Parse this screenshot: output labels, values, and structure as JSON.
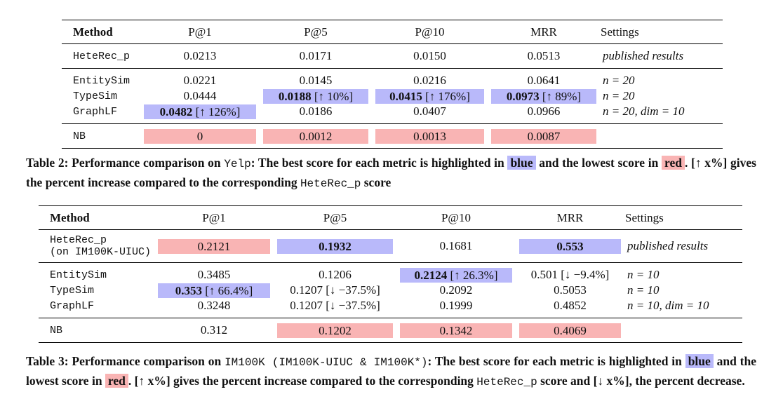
{
  "tables": [
    {
      "columns": [
        "Method",
        "P@1",
        "P@5",
        "P@10",
        "MRR",
        "Settings"
      ],
      "widths": [
        112,
        170,
        160,
        165,
        160,
        175
      ],
      "groups": [
        [
          {
            "method": "HeteRec_p",
            "cells": [
              {
                "value": "0.0213"
              },
              {
                "value": "0.0171"
              },
              {
                "value": "0.0150"
              },
              {
                "value": "0.0513"
              }
            ],
            "settings": "published results"
          }
        ],
        [
          {
            "method": "EntitySim",
            "cells": [
              {
                "value": "0.0221"
              },
              {
                "value": "0.0145"
              },
              {
                "value": "0.0216"
              },
              {
                "value": "0.0641"
              }
            ],
            "settings": "n = 20"
          },
          {
            "method": "TypeSim",
            "cells": [
              {
                "value": "0.0444"
              },
              {
                "value": "0.0188",
                "note": "[↑ 10%]",
                "bold": true,
                "highlight": "blue"
              },
              {
                "value": "0.0415",
                "note": "[↑ 176%]",
                "bold": true,
                "highlight": "blue"
              },
              {
                "value": "0.0973",
                "note": "[↑ 89%]",
                "bold": true,
                "highlight": "blue"
              }
            ],
            "settings": "n = 20"
          },
          {
            "method": "GraphLF",
            "cells": [
              {
                "value": "0.0482",
                "note": "[↑ 126%]",
                "bold": true,
                "highlight": "blue"
              },
              {
                "value": "0.0186"
              },
              {
                "value": "0.0407"
              },
              {
                "value": "0.0966"
              }
            ],
            "settings": "n = 20, dim = 10"
          }
        ],
        [
          {
            "method": "NB",
            "cells": [
              {
                "value": "0",
                "highlight": "red"
              },
              {
                "value": "0.0012",
                "highlight": "red"
              },
              {
                "value": "0.0013",
                "highlight": "red"
              },
              {
                "value": "0.0087",
                "highlight": "red"
              }
            ]
          }
        ]
      ],
      "caption": [
        {
          "text": "Table 2: Performance comparison on ",
          "style": "bold"
        },
        {
          "text": "Yelp",
          "style": "mono"
        },
        {
          "text": ": The best score for each metric is highlighted in ",
          "style": "bold"
        },
        {
          "text": "blue",
          "style": "blue"
        },
        {
          "text": " and the lowest score in ",
          "style": "bold"
        },
        {
          "text": "red",
          "style": "red"
        },
        {
          "text": ". [↑ x%] gives the percent increase compared to the corresponding ",
          "style": "bold"
        },
        {
          "text": "HeteRec_p",
          "style": "mono"
        },
        {
          "text": " score",
          "style": "bold"
        }
      ]
    },
    {
      "columns": [
        "Method",
        "P@1",
        "P@5",
        "P@10",
        "MRR",
        "Settings"
      ],
      "widths": [
        165,
        170,
        175,
        170,
        155,
        168
      ],
      "groups": [
        [
          {
            "method": "HeteRec_p",
            "method_note": "(on IM100K-UIUC)",
            "cells": [
              {
                "value": "0.2121",
                "highlight": "red"
              },
              {
                "value": "0.1932",
                "bold": true,
                "highlight": "blue"
              },
              {
                "value": "0.1681"
              },
              {
                "value": "0.553",
                "bold": true,
                "highlight": "blue"
              }
            ],
            "settings": "published results"
          }
        ],
        [
          {
            "method": "EntitySim",
            "cells": [
              {
                "value": "0.3485"
              },
              {
                "value": "0.1206"
              },
              {
                "value": "0.2124",
                "note": "[↑ 26.3%]",
                "bold": true,
                "highlight": "blue"
              },
              {
                "value": "0.501",
                "note": "[↓ −9.4%]"
              }
            ],
            "settings": "n = 10"
          },
          {
            "method": "TypeSim",
            "cells": [
              {
                "value": "0.353",
                "note": "[↑ 66.4%]",
                "bold": true,
                "highlight": "blue"
              },
              {
                "value": "0.1207",
                "note": "[↓ −37.5%]"
              },
              {
                "value": "0.2092"
              },
              {
                "value": "0.5053"
              }
            ],
            "settings": "n = 10"
          },
          {
            "method": "GraphLF",
            "cells": [
              {
                "value": "0.3248"
              },
              {
                "value": "0.1207",
                "note": "[↓ −37.5%]"
              },
              {
                "value": "0.1999"
              },
              {
                "value": "0.4852"
              }
            ],
            "settings": "n = 10, dim = 10"
          }
        ],
        [
          {
            "method": "NB",
            "cells": [
              {
                "value": "0.312"
              },
              {
                "value": "0.1202",
                "highlight": "red"
              },
              {
                "value": "0.1342",
                "highlight": "red"
              },
              {
                "value": "0.4069",
                "highlight": "red"
              }
            ]
          }
        ]
      ],
      "caption": [
        {
          "text": "Table 3: Performance comparison on ",
          "style": "bold"
        },
        {
          "text": "IM100K (IM100K-UIUC & IM100K*)",
          "style": "mono"
        },
        {
          "text": ": The best score for each metric is highlighted in ",
          "style": "bold"
        },
        {
          "text": "blue",
          "style": "blue"
        },
        {
          "text": " and the lowest score in ",
          "style": "bold"
        },
        {
          "text": "red",
          "style": "red"
        },
        {
          "text": ". [↑ x%] gives the percent increase compared to the corresponding ",
          "style": "bold"
        },
        {
          "text": "HeteRec_p",
          "style": "mono"
        },
        {
          "text": " score and [↓ x%], the percent decrease.",
          "style": "bold"
        }
      ]
    }
  ]
}
